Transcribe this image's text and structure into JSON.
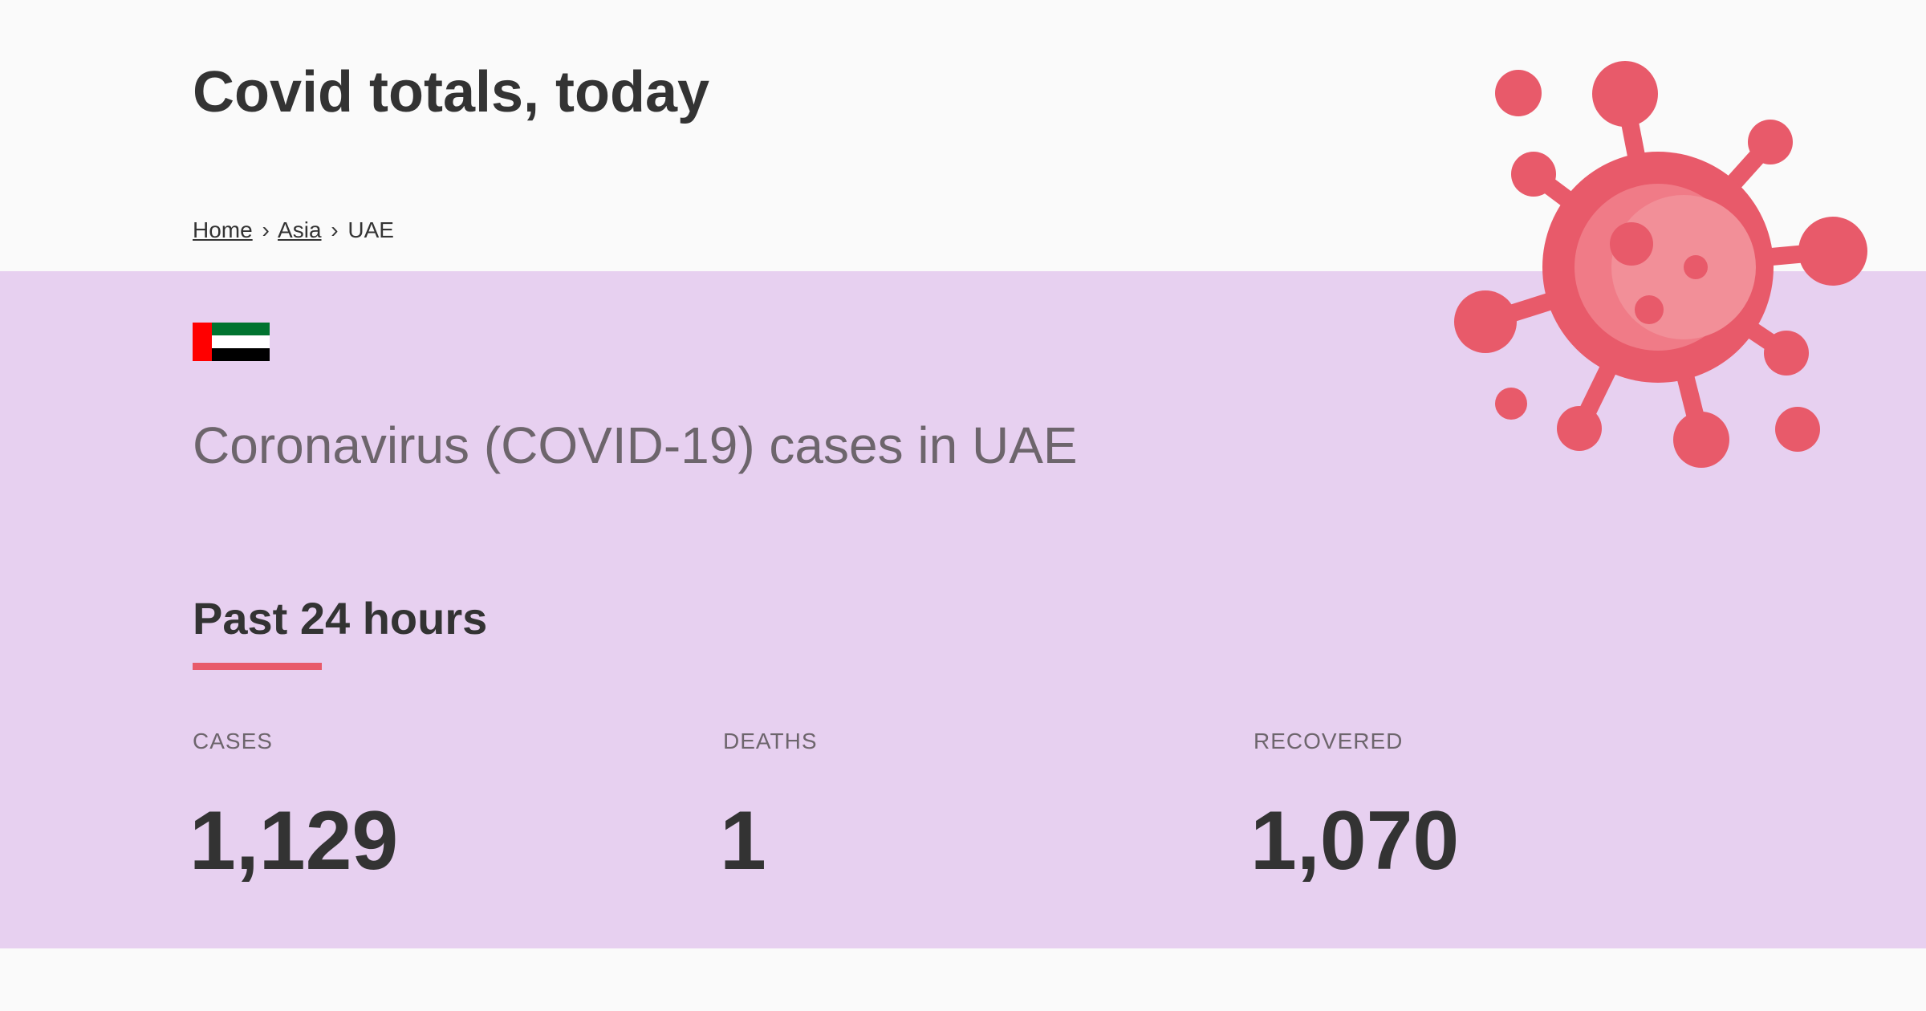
{
  "header": {
    "title": "Covid totals, today"
  },
  "breadcrumb": {
    "items": [
      {
        "label": "Home",
        "link": true
      },
      {
        "label": "Asia",
        "link": true
      },
      {
        "label": "UAE",
        "link": false
      }
    ],
    "separator": "›"
  },
  "country": {
    "flag": "uae-flag",
    "subtitle": "Coronavirus (COVID-19) cases in UAE"
  },
  "section": {
    "heading": "Past 24 hours",
    "accent_color": "#e85a6a"
  },
  "stats": [
    {
      "label": "CASES",
      "value": "1,129"
    },
    {
      "label": "DEATHS",
      "value": "1"
    },
    {
      "label": "RECOVERED",
      "value": "1,070"
    }
  ],
  "colors": {
    "band_background": "#e7d0f0",
    "virus": "#e85a6a",
    "page_background": "#fafafa"
  },
  "icons": {
    "illustration": "coronavirus-icon"
  }
}
